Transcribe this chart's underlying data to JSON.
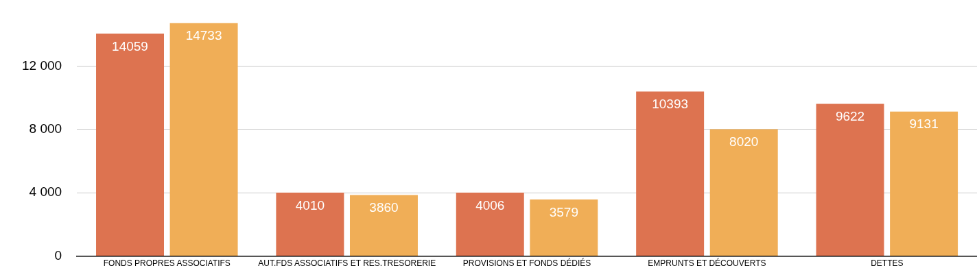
{
  "chart_data": {
    "type": "bar",
    "categories": [
      "FONDS PROPRES ASSOCIATIFS",
      "AUT.FDS ASSOCIATIFS ET RES.TRESORERIE",
      "PROVISIONS ET FONDS DÉDIÉS",
      "EMPRUNTS ET DÉCOUVERTS",
      "DETTES"
    ],
    "series": [
      {
        "color": "#dd7350",
        "values": [
          14059,
          4010,
          4006,
          10393,
          9622
        ]
      },
      {
        "color": "#f0ae57",
        "values": [
          14733,
          3860,
          3579,
          8020,
          9131
        ]
      }
    ],
    "ylim": [
      0,
      14733
    ],
    "yticks": [
      {
        "value": 0,
        "label": "0"
      },
      {
        "value": 4000,
        "label": "4 000"
      },
      {
        "value": 8000,
        "label": "8 000"
      },
      {
        "value": 12000,
        "label": "12 000"
      }
    ],
    "grid": "y",
    "legend": false,
    "data_labels": true
  }
}
